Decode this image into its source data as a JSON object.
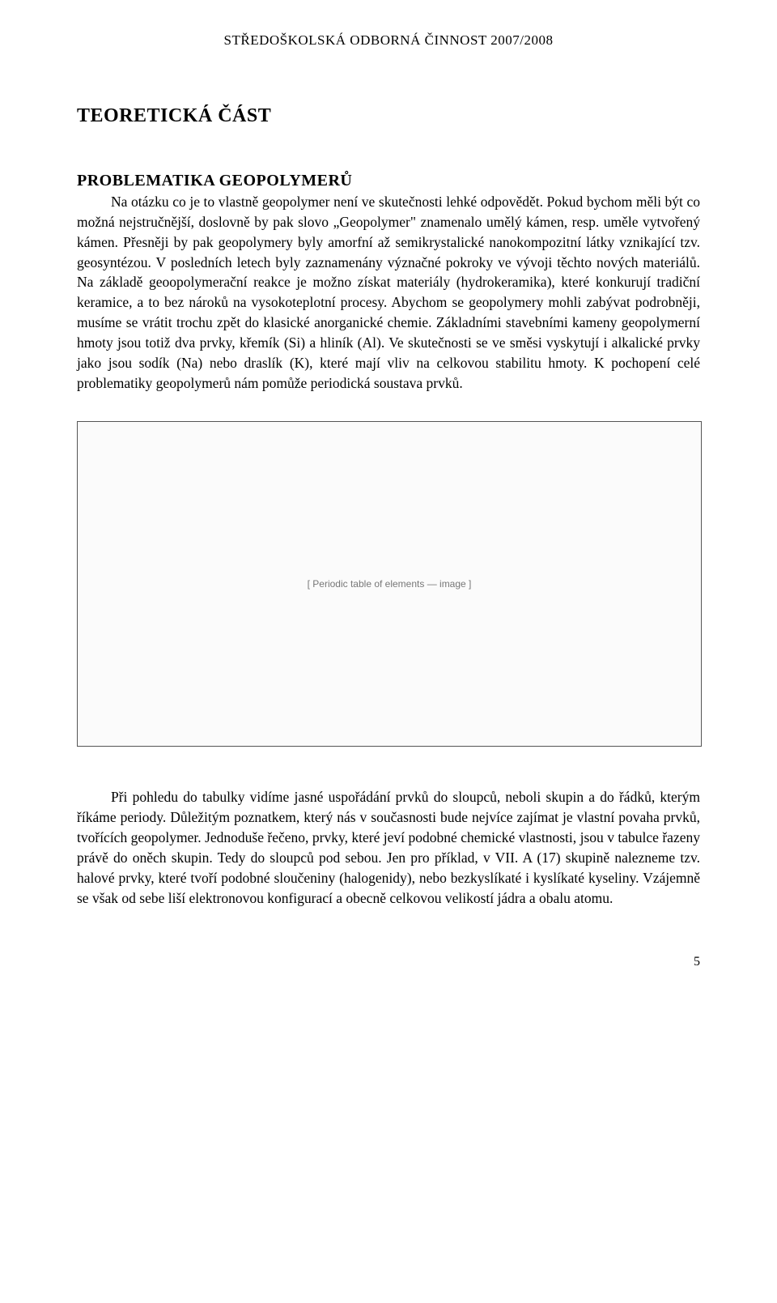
{
  "header": "STŘEDOŠKOLSKÁ ODBORNÁ ČINNOST 2007/2008",
  "heading_main": "TEORETICKÁ ČÁST",
  "heading_sub": "PROBLEMATIKA GEOPOLYMERŮ",
  "para1": "Na otázku co je to vlastně geopolymer není ve skutečnosti lehké odpovědět. Pokud bychom měli být co možná nejstručnější, doslovně by pak slovo „Geopolymer\" znamenalo umělý kámen, resp. uměle vytvořený kámen. Přesněji by pak geopolymery byly amorfní až semikrystalické nanokompozitní látky vznikající tzv. geosyntézou. V posledních letech byly zaznamenány význačné pokroky ve vývoji těchto nových materiálů. Na základě geoopolymerační reakce je možno získat materiály (hydrokeramika), které konkurují tradiční keramice, a to bez nároků na vysokoteplotní procesy. Abychom se geopolymery mohli zabývat podrobněji, musíme se vrátit trochu zpět do klasické anorganické chemie. Základními stavebními kameny geopolymerní hmoty jsou totiž dva prvky, křemík (Si) a hliník (Al). Ve skutečnosti se ve směsi vyskytují i alkalické prvky jako jsou sodík (Na) nebo draslík (K), které mají vliv na celkovou stabilitu hmoty. K pochopení celé problematiky geopolymerů nám pomůže periodická soustava prvků.",
  "pt_placeholder": "[ Periodic table of elements — image ]",
  "para2": "Při pohledu do tabulky vidíme jasné uspořádání prvků do sloupců, neboli skupin a do řádků, kterým říkáme periody. Důležitým poznatkem, který nás v současnosti bude nejvíce zajímat je vlastní povaha prvků, tvořících geopolymer. Jednoduše řečeno, prvky, které jeví podobné chemické vlastnosti, jsou v tabulce řazeny právě do oněch skupin. Tedy do sloupců pod sebou. Jen pro příklad, v VII. A (17) skupině nalezneme tzv. halové prvky, které tvoří podobné sloučeniny (halogenidy), nebo bezkyslíkaté i kyslíkaté kyseliny. Vzájemně se však od sebe liší elektronovou konfigurací a obecně celkovou velikostí jádra a obalu atomu.",
  "page_number": "5"
}
